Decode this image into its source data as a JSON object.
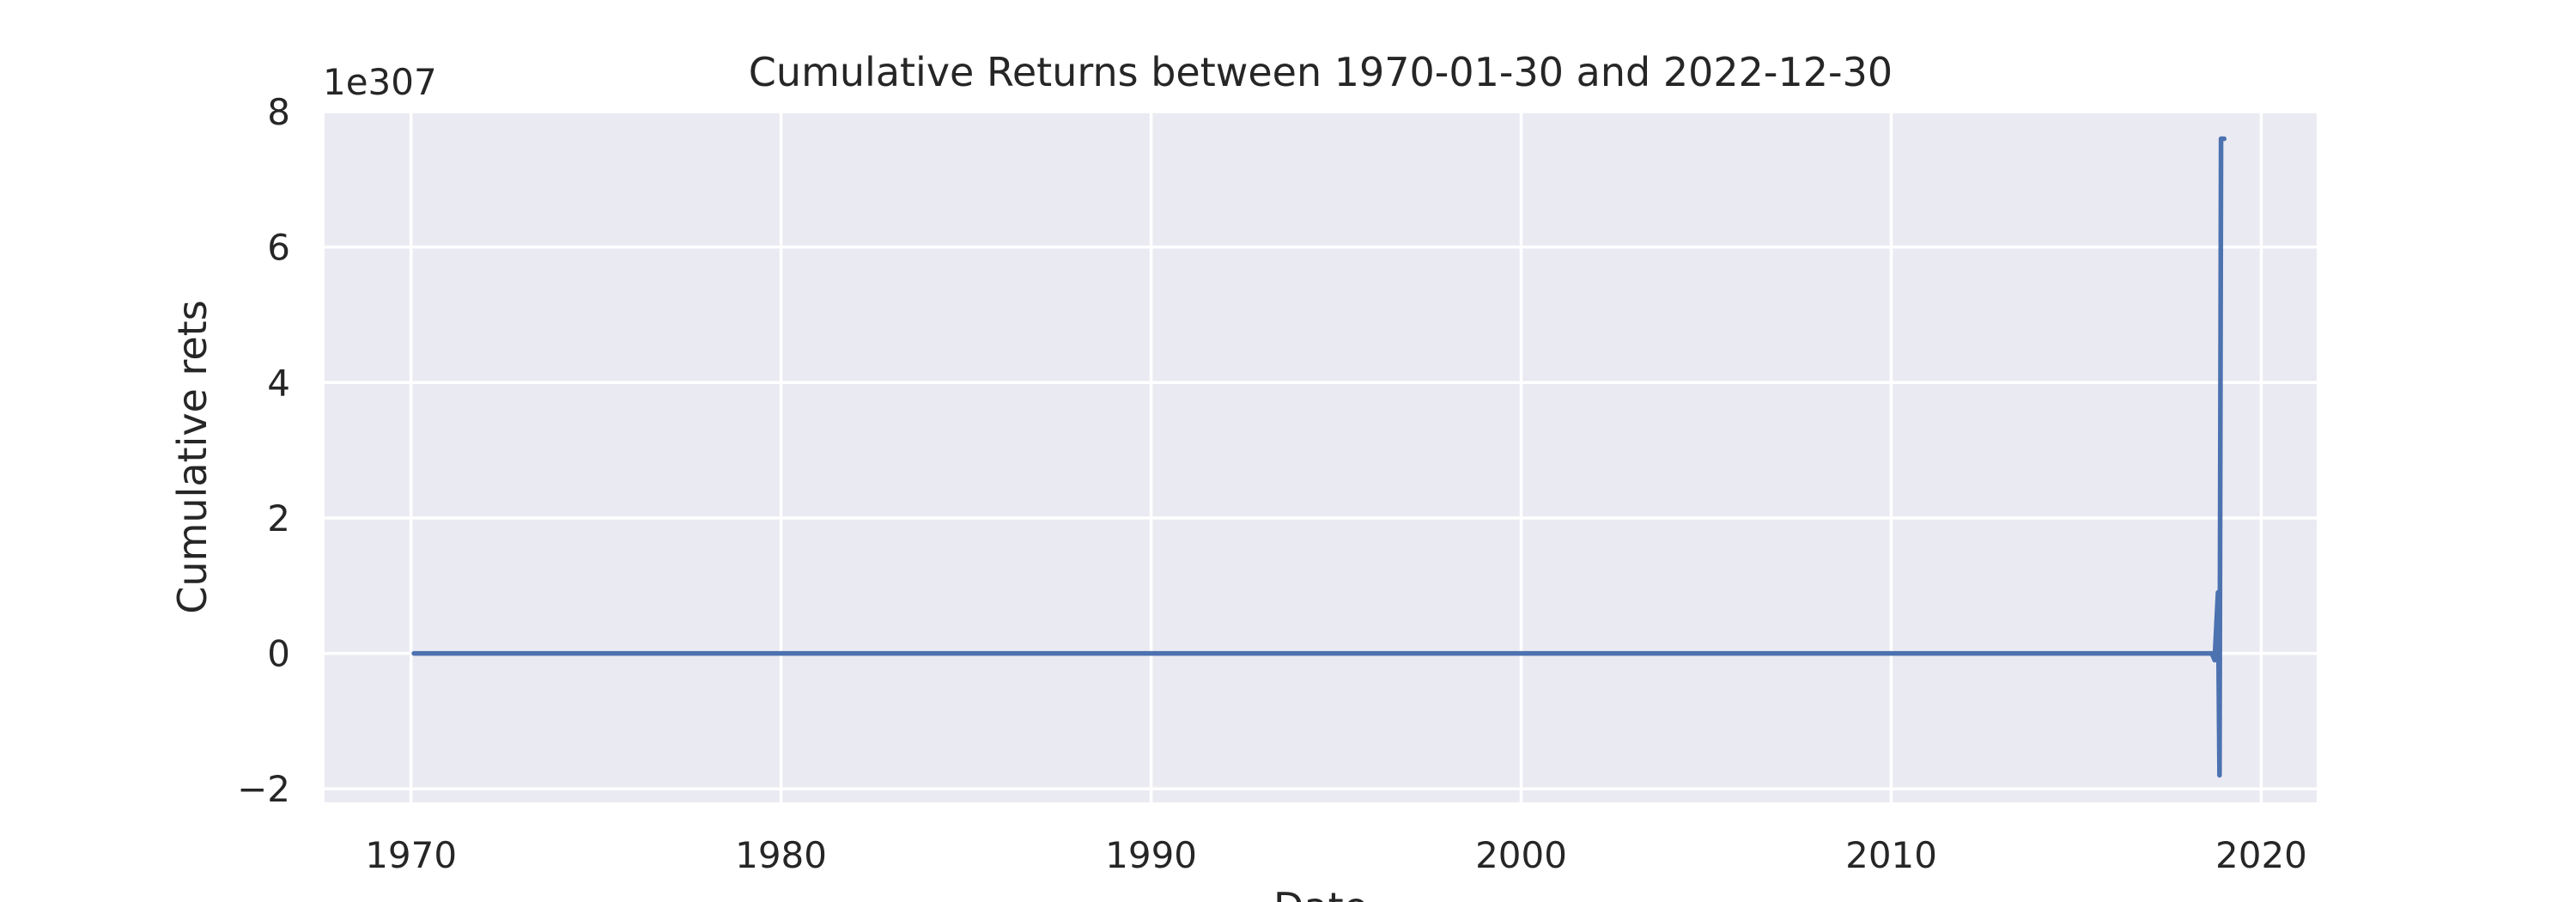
{
  "chart_data": {
    "type": "line",
    "title": "Cumulative Returns between 1970-01-30 and 2022-12-30",
    "xlabel": "Date",
    "ylabel": "Cumulative rets",
    "y_offset_label": "1e307",
    "x_axis_type": "date",
    "xlim": [
      "1967-09-01",
      "2021-07-01"
    ],
    "ylim": [
      -2.2,
      8.0
    ],
    "y_ticks": [
      -2,
      0,
      2,
      4,
      6,
      8
    ],
    "y_tick_labels": [
      "−2",
      "0",
      "2",
      "4",
      "6",
      "8"
    ],
    "x_ticks": [
      "1970-01-01",
      "1980-01-01",
      "1990-01-01",
      "2000-01-01",
      "2010-01-01",
      "2020-01-01"
    ],
    "x_tick_labels": [
      "1970",
      "1980",
      "1990",
      "2000",
      "2010",
      "2020"
    ],
    "grid": true,
    "background": "#eaeaf2",
    "series": [
      {
        "color": "#4c72b0",
        "x": [
          "1970-01-30",
          "2018-08-31",
          "2018-09-28",
          "2018-10-31",
          "2018-11-15",
          "2018-11-30",
          "2018-12-31"
        ],
        "y": [
          0.0,
          0.0,
          -0.1,
          0.9,
          -1.8,
          7.6,
          7.6
        ]
      }
    ]
  }
}
